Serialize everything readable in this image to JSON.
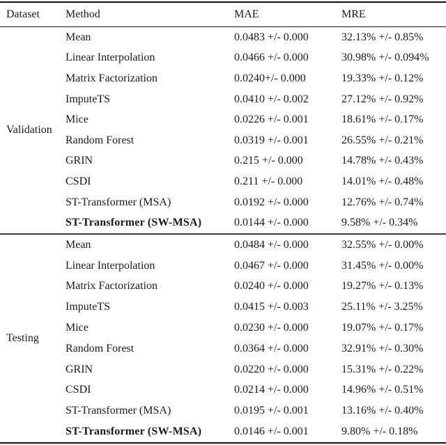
{
  "table": {
    "headers": {
      "dataset": "Dataset",
      "method": "Method",
      "mae": "MAE",
      "mre": "MRE"
    },
    "sections": [
      {
        "label": "Validation",
        "rows": [
          {
            "method": "Mean",
            "bold": false,
            "mae": "0.0483 +/- 0.000",
            "mre": "32.13% +/- 0.85%"
          },
          {
            "method": "Linear Interpolation",
            "bold": false,
            "mae": "0.0466 +/- 0.000",
            "mre": "30.98% +/- 0.094%"
          },
          {
            "method": "Matrix Factorization",
            "bold": false,
            "mae": "0.0240+/- 0.000",
            "mre": "19.33% +/- 0.12%"
          },
          {
            "method": "ImputeTS",
            "bold": false,
            "mae": "0.0410 +/- 0.002",
            "mre": "27.12% +/- 0.92%"
          },
          {
            "method": "Mice",
            "bold": false,
            "mae": "0.0226 +/- 0.001",
            "mre": "18.61% +/- 0.17%"
          },
          {
            "method": "Random Forest",
            "bold": false,
            "mae": "0.0319 +/- 0.001",
            "mre": "26.55% +/- 0.21%"
          },
          {
            "method": "GRIN",
            "bold": false,
            "mae": "0.215 +/- 0.000",
            "mre": "14.78% +/- 0.43%"
          },
          {
            "method": "CSDI",
            "bold": false,
            "mae": "0.211 +/- 0.000",
            "mre": "14.01% +/- 0.48%"
          },
          {
            "method": "ST-Transformer (MSA)",
            "bold": false,
            "mae": "0.0192 +/- 0.000",
            "mre": "12.76% +/- 0.74%"
          },
          {
            "method": "ST-Transformer (SW-MSA)",
            "bold": true,
            "mae": "0.0144 +/- 0.000",
            "mre": "9.58% +/- 0.34%"
          }
        ]
      },
      {
        "label": "Testing",
        "rows": [
          {
            "method": "Mean",
            "bold": false,
            "mae": "0.0484 +/- 0.000",
            "mre": "32.55% +/- 0.00%"
          },
          {
            "method": "Linear Interpolation",
            "bold": false,
            "mae": "0.0467 +/- 0.000",
            "mre": "31.45% +/- 0.00%"
          },
          {
            "method": "Matrix Factorization",
            "bold": false,
            "mae": "0.0240 +/- 0.000",
            "mre": "19.27% +/- 0.13%"
          },
          {
            "method": "ImputeTS",
            "bold": false,
            "mae": "0.0415 +/- 0.003",
            "mre": "25.11% +/- 3.25%"
          },
          {
            "method": "Mice",
            "bold": false,
            "mae": "0.0230 +/- 0.000",
            "mre": "19.07% +/- 0.17%"
          },
          {
            "method": "Random Forest",
            "bold": false,
            "mae": "0.0364 +/- 0.000",
            "mre": "32.91% +/- 0.30%"
          },
          {
            "method": "GRIN",
            "bold": false,
            "mae": "0.0220 +/- 0.000",
            "mre": "15.31% +/- 0.22%"
          },
          {
            "method": "CSDI",
            "bold": false,
            "mae": "0.0214 +/- 0.000",
            "mre": "14.96% +/- 0.51%"
          },
          {
            "method": "ST-Transformer (MSA)",
            "bold": false,
            "mae": "0.0195 +/- 0.001",
            "mre": "13.16% +/- 0.40%"
          },
          {
            "method": "ST-Transformer (SW-MSA)",
            "bold": true,
            "mae": "0.0146 +/- 0.001",
            "mre": "9.80% +/- 0.18%"
          }
        ]
      }
    ]
  },
  "colors": {
    "text": "#1a1a1a",
    "rule": "#111111",
    "background": "#ffffff"
  }
}
